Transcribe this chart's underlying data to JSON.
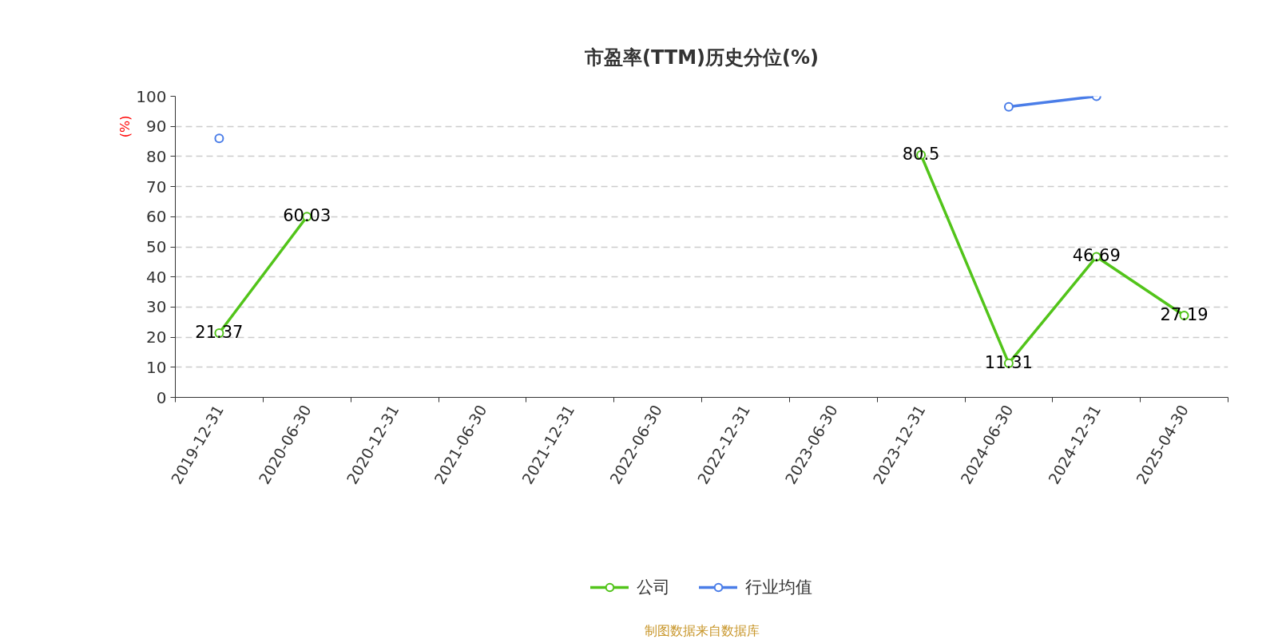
{
  "chart_data": {
    "type": "line",
    "title": "市盈率(TTM)历史分位(%)",
    "ylabel": "(%)",
    "categories": [
      "2019-12-31",
      "2020-06-30",
      "2020-12-31",
      "2021-06-30",
      "2021-12-31",
      "2022-06-30",
      "2022-12-31",
      "2023-06-30",
      "2023-12-31",
      "2024-06-30",
      "2024-12-31",
      "2025-04-30"
    ],
    "series": [
      {
        "name": "公司",
        "color": "#52c41a",
        "values": [
          21.37,
          60.03,
          null,
          null,
          null,
          null,
          null,
          null,
          80.5,
          11.31,
          46.69,
          27.19
        ],
        "value_labels": [
          "21.37",
          "60.03",
          null,
          null,
          null,
          null,
          null,
          null,
          "80.5",
          "11.31",
          "46.69",
          "27.19"
        ]
      },
      {
        "name": "行业均值",
        "color": "#4a7de8",
        "values": [
          86,
          null,
          null,
          null,
          null,
          null,
          null,
          null,
          null,
          96.5,
          100,
          null
        ]
      }
    ],
    "ylim": [
      0,
      100
    ],
    "yticks": [
      0,
      10,
      20,
      30,
      40,
      50,
      60,
      70,
      80,
      90,
      100
    ],
    "grid": "y",
    "legend": "bottom",
    "marker": "circle",
    "line_style": "solid",
    "annotations": [
      "制图数据来自数据库"
    ]
  }
}
